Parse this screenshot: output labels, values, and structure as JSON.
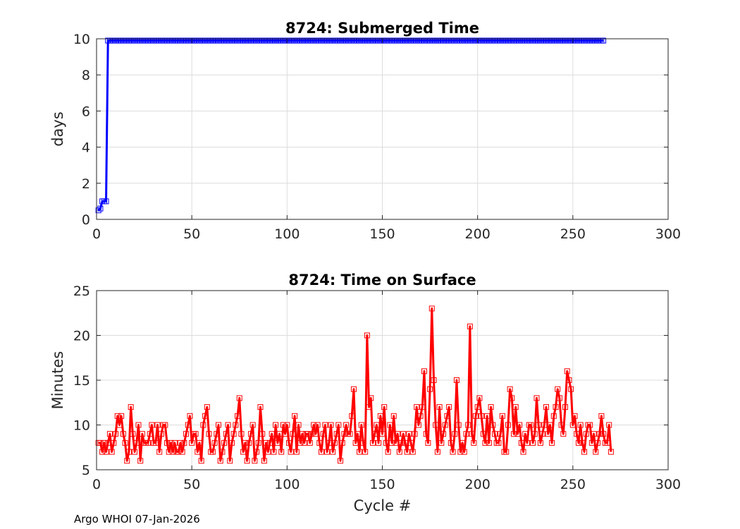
{
  "footer": "Argo WHOI 07-Jan-2026",
  "chart_data": [
    {
      "type": "line",
      "title": "8724: Submerged Time",
      "xlabel": "",
      "ylabel": "days",
      "xlim": [
        0,
        300
      ],
      "ylim": [
        0,
        10
      ],
      "xticks": [
        0,
        50,
        100,
        150,
        200,
        250,
        300
      ],
      "yticks": [
        0,
        2,
        4,
        6,
        8,
        10
      ],
      "grid": true,
      "color": "#0000ff",
      "marker": "square",
      "series": [
        {
          "x_start": 1,
          "values": [
            0.5,
            0.6,
            1.0,
            1.0,
            1.0,
            9.9,
            9.9,
            9.9,
            9.9,
            9.9,
            9.9,
            9.9,
            9.9,
            9.9,
            9.9,
            9.9,
            9.9,
            9.9,
            9.9,
            9.9,
            9.9,
            9.9,
            9.9,
            9.9,
            9.9,
            9.9,
            9.9,
            9.9,
            9.9,
            9.9,
            9.9,
            9.9,
            9.9,
            9.9,
            9.9,
            9.9,
            9.9,
            9.9,
            9.9,
            9.9,
            9.9,
            9.9,
            9.9,
            9.9,
            9.9,
            9.9,
            9.9,
            9.9,
            9.9,
            9.9,
            9.9,
            9.9,
            9.9,
            9.9,
            9.9,
            9.9,
            9.9,
            9.9,
            9.9,
            9.9,
            9.9,
            9.9,
            9.9,
            9.9,
            9.9,
            9.9,
            9.9,
            9.9,
            9.9,
            9.9,
            9.9,
            9.9,
            9.9,
            9.9,
            9.9,
            9.9,
            9.9,
            9.9,
            9.9,
            9.9,
            9.9,
            9.9,
            9.9,
            9.9,
            9.9,
            9.9,
            9.9,
            9.9,
            9.9,
            9.9,
            9.9,
            9.9,
            9.9,
            9.9,
            9.9,
            9.9,
            9.9,
            9.9,
            9.9,
            9.9,
            9.9,
            9.9,
            9.9,
            9.9,
            9.9,
            9.9,
            9.9,
            9.9,
            9.9,
            9.9,
            9.9,
            9.9,
            9.9,
            9.9,
            9.9,
            9.9,
            9.9,
            9.9,
            9.9,
            9.9,
            9.9,
            9.9,
            9.9,
            9.9,
            9.9,
            9.9,
            9.9,
            9.9,
            9.9,
            9.9,
            9.9,
            9.9,
            9.9,
            9.9,
            9.9,
            9.9,
            9.9,
            9.9,
            9.9,
            9.9,
            9.9,
            9.9,
            9.9,
            9.9,
            9.9,
            9.9,
            9.9,
            9.9,
            9.9,
            9.9,
            9.9,
            9.9,
            9.9,
            9.9,
            9.9,
            9.9,
            9.9,
            9.9,
            9.9,
            9.9,
            9.9,
            9.9,
            9.9,
            9.9,
            9.9,
            9.9,
            9.9,
            9.9,
            9.9,
            9.9,
            9.9,
            9.9,
            9.9,
            9.9,
            9.9,
            9.9,
            9.9,
            9.9,
            9.9,
            9.9,
            9.9,
            9.9,
            9.9,
            9.9,
            9.9,
            9.9,
            9.9,
            9.9,
            9.9,
            9.9,
            9.9,
            9.9,
            9.9,
            9.9,
            9.9,
            9.9,
            9.9,
            9.9,
            9.9,
            9.9,
            9.9,
            9.9,
            9.9,
            9.9,
            9.9,
            9.9,
            9.9,
            9.9,
            9.9,
            9.9,
            9.9,
            9.9,
            9.9,
            9.9,
            9.9,
            9.9,
            9.9,
            9.9,
            9.9,
            9.9,
            9.9,
            9.9,
            9.9,
            9.9,
            9.9,
            9.9,
            9.9,
            9.9,
            9.9,
            9.9,
            9.9,
            9.9,
            9.9,
            9.9,
            9.9,
            9.9,
            9.9,
            9.9,
            9.9,
            9.9,
            9.9,
            9.9,
            9.9,
            9.9,
            9.9,
            9.9,
            9.9,
            9.9,
            9.9,
            9.9,
            9.9,
            9.9,
            9.9,
            9.9,
            9.9,
            9.9,
            9.9,
            9.9,
            9.9,
            9.9,
            9.9,
            9.9,
            9.9,
            9.9,
            9.9,
            9.9
          ]
        }
      ]
    },
    {
      "type": "line",
      "title": "8724: Time on Surface",
      "xlabel": "Cycle #",
      "ylabel": "Minutes",
      "xlim": [
        0,
        300
      ],
      "ylim": [
        5,
        25
      ],
      "xticks": [
        0,
        50,
        100,
        150,
        200,
        250,
        300
      ],
      "yticks": [
        5,
        10,
        15,
        20,
        25
      ],
      "grid": true,
      "color": "#ff0000",
      "marker": "square",
      "series": [
        {
          "x_start": 1,
          "values": [
            8,
            8,
            7,
            8,
            7,
            8,
            9,
            7,
            8,
            9,
            11,
            10,
            11,
            9,
            8,
            6,
            7,
            12,
            9,
            7,
            8,
            10,
            6,
            9,
            8,
            8,
            8,
            9,
            10,
            8,
            8,
            10,
            7,
            9,
            10,
            10,
            8,
            7,
            8,
            7,
            8,
            7,
            7,
            8,
            7,
            8,
            9,
            10,
            11,
            8,
            9,
            9,
            7,
            8,
            6,
            10,
            11,
            12,
            9,
            7,
            7,
            8,
            9,
            10,
            6,
            7,
            8,
            9,
            10,
            6,
            8,
            9,
            10,
            11,
            13,
            9,
            7,
            8,
            6,
            8,
            9,
            10,
            6,
            7,
            8,
            12,
            9,
            6,
            8,
            7,
            8,
            9,
            7,
            10,
            8,
            9,
            7,
            10,
            9,
            10,
            8,
            7,
            9,
            11,
            7,
            10,
            8,
            9,
            8,
            9,
            9,
            8,
            9,
            10,
            9,
            10,
            8,
            7,
            9,
            10,
            7,
            8,
            10,
            7,
            8,
            9,
            10,
            6,
            8,
            9,
            10,
            9,
            9,
            11,
            14,
            8,
            9,
            7,
            10,
            8,
            7,
            20,
            12,
            13,
            8,
            9,
            10,
            8,
            11,
            9,
            12,
            8,
            7,
            10,
            8,
            11,
            8,
            9,
            7,
            8,
            9,
            8,
            7,
            9,
            8,
            7,
            9,
            12,
            10,
            11,
            12,
            16,
            9,
            8,
            14,
            23,
            15,
            10,
            7,
            12,
            8,
            9,
            10,
            11,
            12,
            8,
            7,
            9,
            15,
            10,
            7,
            8,
            7,
            9,
            10,
            21,
            9,
            8,
            11,
            12,
            13,
            11,
            9,
            8,
            11,
            8,
            12,
            10,
            9,
            8,
            8,
            9,
            11,
            7,
            7,
            10,
            14,
            13,
            9,
            12,
            9,
            10,
            8,
            7,
            9,
            8,
            10,
            10,
            8,
            9,
            13,
            10,
            8,
            9,
            10,
            12,
            9,
            10,
            8,
            11,
            12,
            14,
            13,
            10,
            9,
            12,
            16,
            15,
            14,
            10,
            11,
            9,
            8,
            10,
            8,
            7,
            9,
            10,
            10,
            8,
            9,
            7,
            8,
            9,
            11,
            9,
            8,
            8,
            10,
            7
          ]
        }
      ]
    }
  ]
}
